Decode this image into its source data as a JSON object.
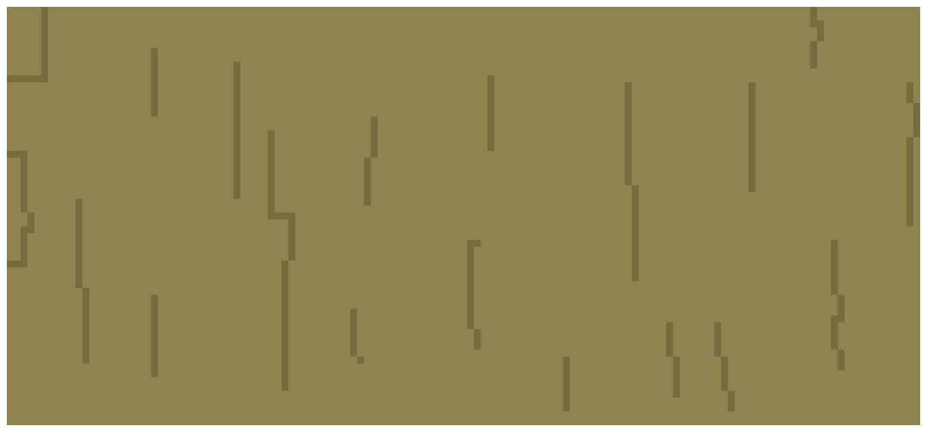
{
  "texture": {
    "base_color": "#8e8450",
    "grain_color": "#766c3e",
    "border_color": "#ffffff"
  }
}
